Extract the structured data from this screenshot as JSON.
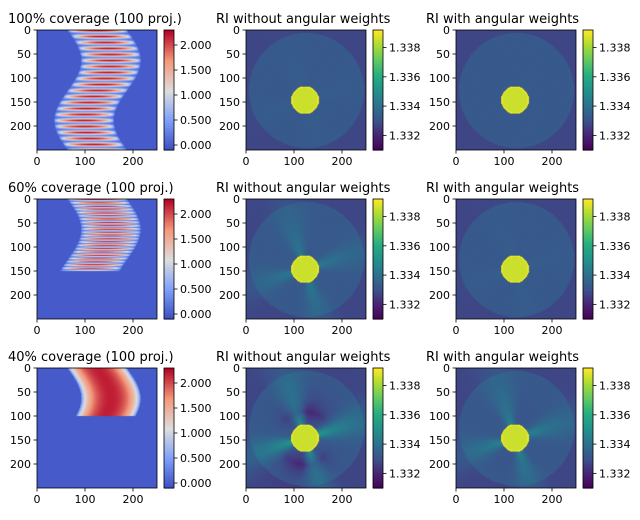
{
  "figure": {
    "rows": [
      {
        "sinogram_title": "100% coverage (100 proj.)",
        "ri_title_without": "RI without angular weights",
        "ri_title_with": "RI with angular weights",
        "coverage": 1.0,
        "sinogram_bands": 20,
        "streak_strength_without": 0.05,
        "streak_strength_with": 0.0
      },
      {
        "sinogram_title": "60% coverage (100 proj.)",
        "ri_title_without": "RI without angular weights",
        "ri_title_with": "RI with angular weights",
        "coverage": 0.6,
        "sinogram_bands": 22,
        "streak_strength_without": 0.35,
        "streak_strength_with": 0.05
      },
      {
        "sinogram_title": "40% coverage (100 proj.)",
        "ri_title_without": "RI without angular weights",
        "ri_title_with": "RI with angular weights",
        "coverage": 0.4,
        "sinogram_bands": 0,
        "streak_strength_without": 0.7,
        "streak_strength_with": 0.45
      }
    ]
  },
  "chart_data": {
    "type": "heatmap",
    "x_ticks": [
      "0",
      "100",
      "200"
    ],
    "y_ticks": [
      "0",
      "50",
      "100",
      "150",
      "200"
    ],
    "x_tick_values": [
      0,
      100,
      200
    ],
    "y_tick_values": [
      0,
      50,
      100,
      150,
      200
    ],
    "xlim": [
      0,
      250
    ],
    "ylim": [
      250,
      0
    ],
    "sinogram_colorbar": {
      "colormap": "coolwarm",
      "range": [
        -0.1,
        2.3
      ],
      "ticks": [
        "0.000",
        "0.500",
        "1.000",
        "1.500",
        "2.000"
      ],
      "tick_values": [
        0,
        0.5,
        1.0,
        1.5,
        2.0
      ]
    },
    "ri_colorbar": {
      "colormap": "viridis",
      "range": [
        1.331,
        1.3392
      ],
      "ticks": [
        "1.332",
        "1.334",
        "1.336",
        "1.338"
      ],
      "tick_values": [
        1.332,
        1.334,
        1.336,
        1.338
      ]
    },
    "ri_phantom": {
      "background_ri": 1.3333,
      "sphere_ri": 1.339,
      "sphere_center": [
        122,
        145
      ],
      "sphere_radius": 28,
      "field_radius": 120
    }
  }
}
